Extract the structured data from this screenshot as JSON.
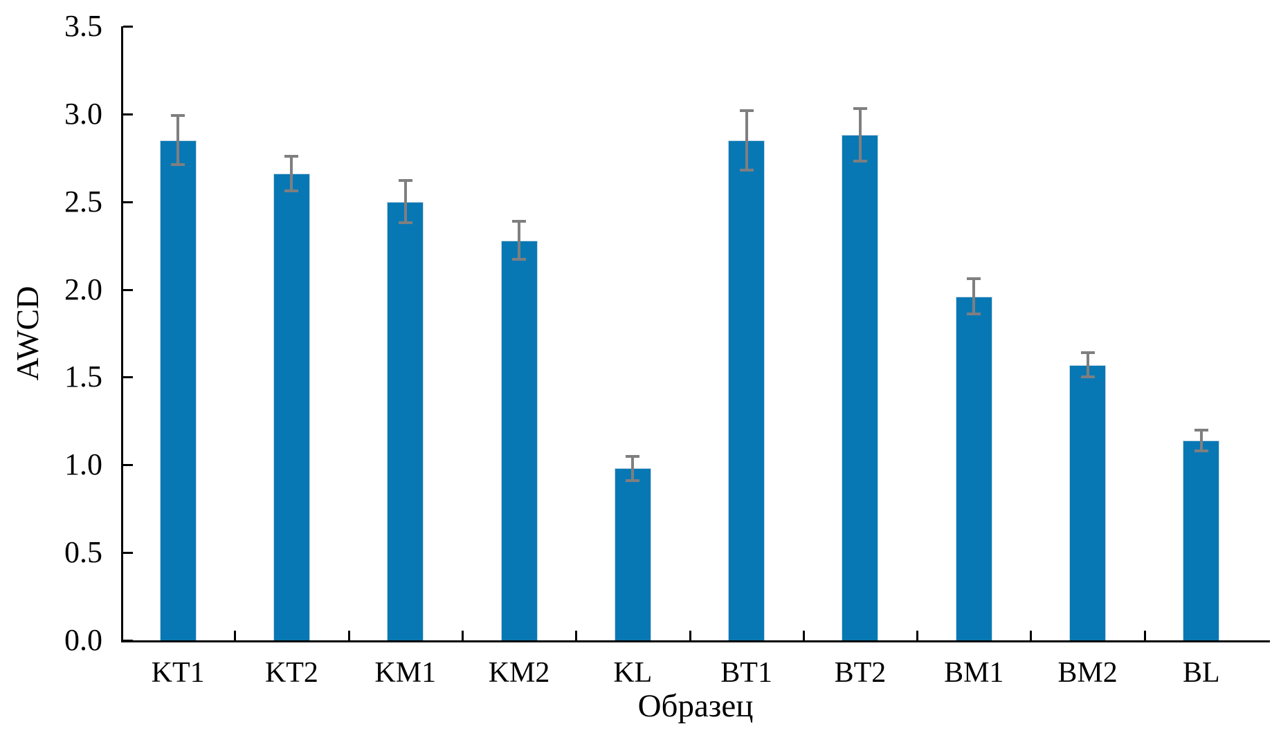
{
  "chart_data": {
    "type": "bar",
    "title": "",
    "categories": [
      "KT1",
      "KT2",
      "KM1",
      "KM2",
      "KL",
      "BT1",
      "BT2",
      "BM1",
      "BM2",
      "BL"
    ],
    "values": [
      2.85,
      2.66,
      2.5,
      2.28,
      0.98,
      2.85,
      2.88,
      1.96,
      1.57,
      1.14
    ],
    "errors": [
      0.14,
      0.1,
      0.12,
      0.11,
      0.07,
      0.17,
      0.15,
      0.1,
      0.07,
      0.06
    ],
    "xlabel": "Образец",
    "ylabel": "AWCD",
    "ylim": [
      0,
      3.5
    ],
    "yticks": [
      "0.0",
      "0.5",
      "1.0",
      "1.5",
      "2.0",
      "2.5",
      "3.0",
      "3.5"
    ],
    "grid": false,
    "legend": false,
    "bar_color": "#0878B4",
    "bar_border_color": "#c6d7e5",
    "error_bar_color": "#7f7f7f",
    "axis_color": "#000000",
    "background_color": "#ffffff"
  }
}
